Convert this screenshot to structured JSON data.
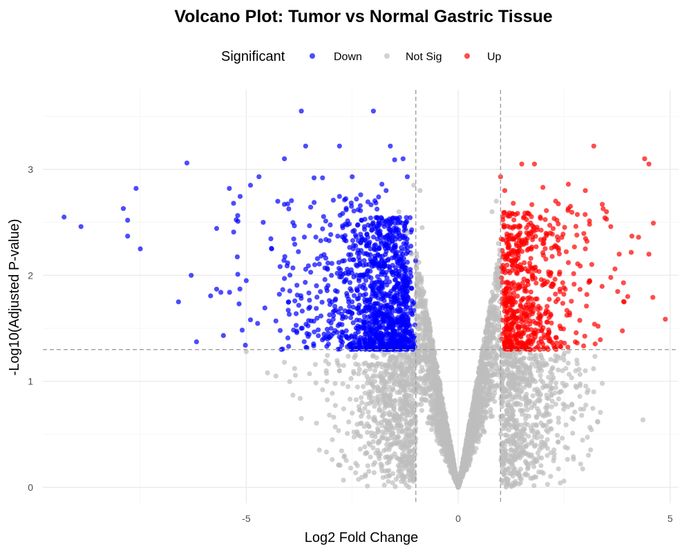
{
  "chart_data": {
    "type": "scatter",
    "title": "Volcano Plot: Tumor vs Normal Gastric Tissue",
    "xlabel": "Log2 Fold Change",
    "ylabel": "-Log10(Adjusted P-value)",
    "xlim": [
      -9.8,
      5.2
    ],
    "ylim": [
      -0.15,
      3.75
    ],
    "x_ticks": [
      -5,
      0,
      5
    ],
    "y_ticks": [
      0,
      1,
      2,
      3
    ],
    "grid": true,
    "legend": {
      "title": "Significant",
      "placement": "top",
      "entries": [
        {
          "label": "Down",
          "color": "#0000ff"
        },
        {
          "label": "Not Sig",
          "color": "#bebebe"
        },
        {
          "label": "Up",
          "color": "#ff0000"
        }
      ]
    },
    "thresholds": {
      "log2fc": [
        -1,
        1
      ],
      "neg_log10_padj": 1.3
    },
    "series": [
      {
        "name": "Down",
        "color": "#0000ff",
        "points": [
          [
            -9.3,
            2.55
          ],
          [
            -8.9,
            2.46
          ],
          [
            -7.9,
            2.63
          ],
          [
            -7.8,
            2.52
          ],
          [
            -7.8,
            2.37
          ],
          [
            -7.6,
            2.82
          ],
          [
            -7.5,
            2.25
          ],
          [
            -6.4,
            3.06
          ],
          [
            -6.3,
            2.0
          ],
          [
            -6.6,
            1.75
          ],
          [
            -5.7,
            1.87
          ],
          [
            -5.6,
            1.84
          ],
          [
            -5.4,
            2.82
          ],
          [
            -5.3,
            2.68
          ],
          [
            -5.2,
            2.01
          ],
          [
            -5.0,
            1.95
          ],
          [
            -4.9,
            2.85
          ],
          [
            -4.9,
            1.58
          ],
          [
            -4.7,
            2.93
          ],
          [
            -4.6,
            2.5
          ],
          [
            -4.4,
            2.25
          ],
          [
            -4.3,
            1.57
          ],
          [
            -4.1,
            3.1
          ],
          [
            -4.1,
            2.67
          ],
          [
            -4.1,
            1.97
          ],
          [
            -3.9,
            2.07
          ],
          [
            -3.7,
            3.55
          ],
          [
            -3.6,
            3.22
          ],
          [
            -3.4,
            2.92
          ],
          [
            -3.2,
            2.92
          ],
          [
            -2.8,
            3.22
          ],
          [
            -2.5,
            2.93
          ],
          [
            -2.4,
            2.72
          ],
          [
            -2.3,
            2.76
          ],
          [
            -2.0,
            3.55
          ],
          [
            -1.8,
            2.86
          ],
          [
            -1.7,
            2.8
          ],
          [
            -1.6,
            3.22
          ],
          [
            -1.5,
            3.09
          ],
          [
            -1.2,
            2.93
          ],
          [
            -1.3,
            3.1
          ],
          [
            -4.0,
            1.75
          ],
          [
            -4.2,
            1.48
          ],
          [
            -4.0,
            1.33
          ],
          [
            -3.7,
            1.5
          ],
          [
            -3.5,
            1.7
          ],
          [
            -3.3,
            1.43
          ],
          [
            -3.1,
            1.33
          ],
          [
            -3.0,
            1.55
          ]
        ]
      },
      {
        "name": "Up",
        "color": "#ff0000",
        "points": [
          [
            1.0,
            2.93
          ],
          [
            1.1,
            2.8
          ],
          [
            1.3,
            2.68
          ],
          [
            1.5,
            3.05
          ],
          [
            1.8,
            3.05
          ],
          [
            2.0,
            2.83
          ],
          [
            2.3,
            2.7
          ],
          [
            2.6,
            2.86
          ],
          [
            2.6,
            2.63
          ],
          [
            3.0,
            2.8
          ],
          [
            3.2,
            3.22
          ],
          [
            3.4,
            2.67
          ],
          [
            3.5,
            2.6
          ],
          [
            3.5,
            2.53
          ],
          [
            3.6,
            2.46
          ],
          [
            3.8,
            2.2
          ],
          [
            3.7,
            2.06
          ],
          [
            3.6,
            1.98
          ],
          [
            3.9,
            1.93
          ],
          [
            4.0,
            1.8
          ],
          [
            4.1,
            2.37
          ],
          [
            4.4,
            3.1
          ],
          [
            4.5,
            3.05
          ],
          [
            4.5,
            2.2
          ],
          [
            3.3,
            1.52
          ],
          [
            3.1,
            1.95
          ],
          [
            3.0,
            2.25
          ],
          [
            2.8,
            2.38
          ],
          [
            2.6,
            2.12
          ],
          [
            2.4,
            1.87
          ],
          [
            2.2,
            1.55
          ],
          [
            2.0,
            1.35
          ],
          [
            1.8,
            1.45
          ],
          [
            1.7,
            1.3
          ]
        ]
      },
      {
        "name": "Not Sig",
        "color": "#bebebe",
        "points": [
          [
            -5.0,
            1.28
          ],
          [
            -4.5,
            1.08
          ],
          [
            -4.3,
            1.05
          ],
          [
            -4.1,
            1.18
          ],
          [
            -3.9,
            0.87
          ],
          [
            -3.7,
            0.65
          ],
          [
            -3.2,
            0.92
          ],
          [
            -3.1,
            1.0
          ],
          [
            -2.8,
            1.1
          ],
          [
            -2.6,
            0.95
          ],
          [
            -2.5,
            0.7
          ],
          [
            -2.3,
            0.48
          ],
          [
            -2.1,
            0.9
          ],
          [
            -1.9,
            0.35
          ],
          [
            -1.4,
            2.6
          ],
          [
            -1.2,
            2.4
          ],
          [
            -1.1,
            2.2
          ],
          [
            -1.05,
            2.85
          ],
          [
            -0.9,
            2.8
          ],
          [
            -0.85,
            2.45
          ],
          [
            0.8,
            2.6
          ],
          [
            0.9,
            2.7
          ],
          [
            0.95,
            2.3
          ],
          [
            1.3,
            1.0
          ],
          [
            1.6,
            0.85
          ],
          [
            2.0,
            1.15
          ],
          [
            2.4,
            0.9
          ],
          [
            2.6,
            1.28
          ],
          [
            2.8,
            1.2
          ],
          [
            3.0,
            1.1
          ],
          [
            3.2,
            0.9
          ],
          [
            3.4,
            0.98
          ],
          [
            2.2,
            0.55
          ],
          [
            2.1,
            0.3
          ]
        ]
      }
    ]
  }
}
